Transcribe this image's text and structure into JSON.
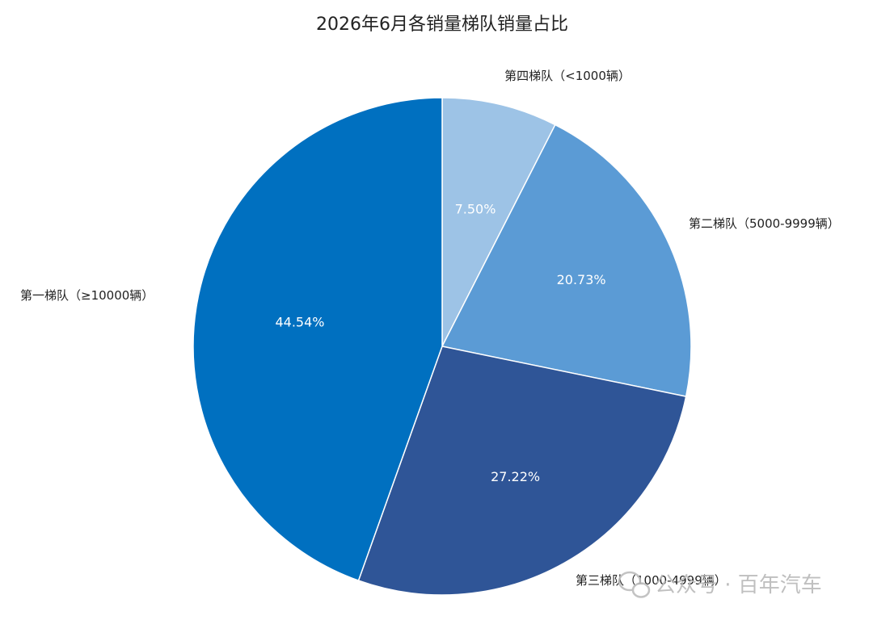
{
  "chart_data": {
    "type": "pie",
    "title": "2026年6月各销量梯队销量占比",
    "slices": [
      {
        "label": "第四梯队（<1000辆）",
        "value": 7.5,
        "value_label": "7.50%",
        "color": "#9dc3e6"
      },
      {
        "label": "第二梯队（5000-9999辆）",
        "value": 20.73,
        "value_label": "20.73%",
        "color": "#5b9bd5"
      },
      {
        "label": "第三梯队（1000-4999辆）",
        "value": 27.22,
        "value_label": "27.22%",
        "color": "#2f5597"
      },
      {
        "label": "第一梯队（≥10000辆）",
        "value": 44.54,
        "value_label": "44.54%",
        "color": "#0070c0"
      }
    ],
    "start": "12 o'clock",
    "direction": "clockwise",
    "legend": "none"
  },
  "watermark": {
    "text": "公众号 · 百年汽车",
    "icon": "wechat-icon"
  }
}
